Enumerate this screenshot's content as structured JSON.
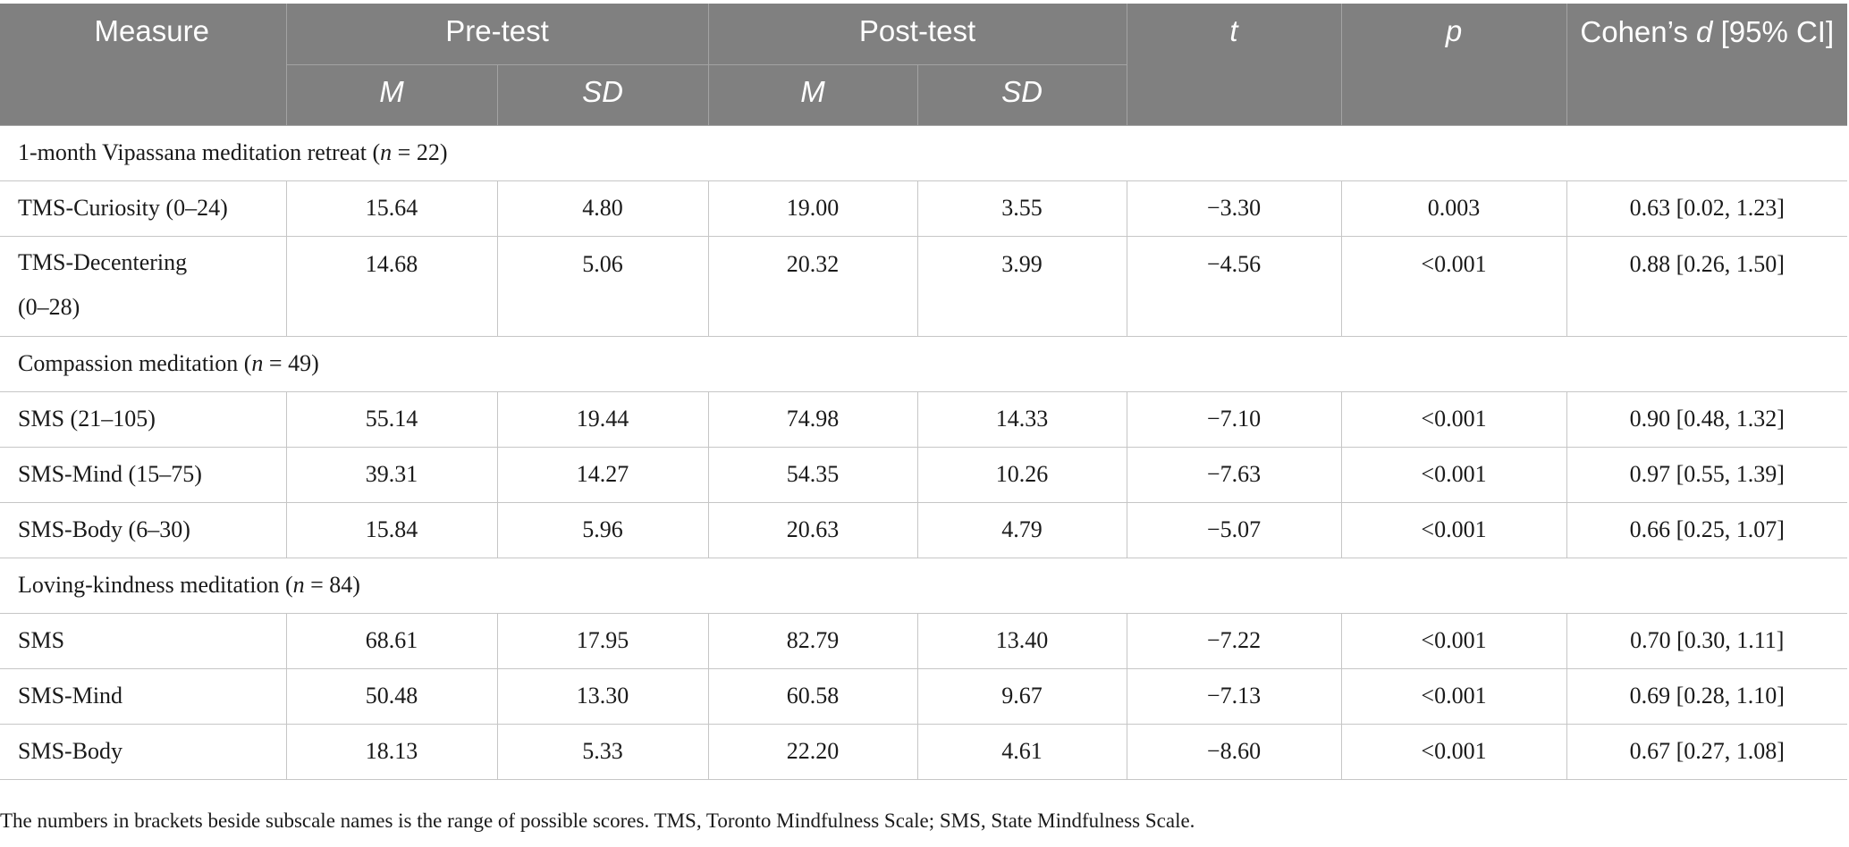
{
  "table": {
    "headers": {
      "measure": "Measure",
      "pre_test": "Pre-test",
      "post_test": "Post-test",
      "t": "t",
      "p": "p",
      "cohen_prefix": "Cohen’s ",
      "cohen_d": "d",
      "cohen_suffix": " [95% CI]",
      "m": "M",
      "sd": "SD"
    },
    "sections": [
      {
        "label_prefix": "1-month Vipassana meditation retreat (",
        "label_n": "n",
        "label_suffix": " = 22)",
        "rows": [
          {
            "measure_line1": "TMS-Curiosity (0–24)",
            "measure_line2": "",
            "pre_m": "15.64",
            "pre_sd": "4.80",
            "post_m": "19.00",
            "post_sd": "3.55",
            "t": "−3.30",
            "p": "0.003",
            "d": "0.63 [0.02, 1.23]"
          },
          {
            "measure_line1": "TMS-Decentering",
            "measure_line2": "(0–28)",
            "pre_m": "14.68",
            "pre_sd": "5.06",
            "post_m": "20.32",
            "post_sd": "3.99",
            "t": "−4.56",
            "p": "<0.001",
            "d": "0.88 [0.26, 1.50]"
          }
        ]
      },
      {
        "label_prefix": "Compassion meditation (",
        "label_n": "n",
        "label_suffix": " = 49)",
        "rows": [
          {
            "measure_line1": "SMS (21–105)",
            "measure_line2": "",
            "pre_m": "55.14",
            "pre_sd": "19.44",
            "post_m": "74.98",
            "post_sd": "14.33",
            "t": "−7.10",
            "p": "<0.001",
            "d": "0.90 [0.48, 1.32]"
          },
          {
            "measure_line1": "SMS-Mind (15–75)",
            "measure_line2": "",
            "pre_m": "39.31",
            "pre_sd": "14.27",
            "post_m": "54.35",
            "post_sd": "10.26",
            "t": "−7.63",
            "p": "<0.001",
            "d": "0.97 [0.55, 1.39]"
          },
          {
            "measure_line1": "SMS-Body (6–30)",
            "measure_line2": "",
            "pre_m": "15.84",
            "pre_sd": "5.96",
            "post_m": "20.63",
            "post_sd": "4.79",
            "t": "−5.07",
            "p": "<0.001",
            "d": "0.66 [0.25, 1.07]"
          }
        ]
      },
      {
        "label_prefix": "Loving-kindness meditation (",
        "label_n": "n",
        "label_suffix": " = 84)",
        "rows": [
          {
            "measure_line1": "SMS",
            "measure_line2": "",
            "pre_m": "68.61",
            "pre_sd": "17.95",
            "post_m": "82.79",
            "post_sd": "13.40",
            "t": "−7.22",
            "p": "<0.001",
            "d": "0.70 [0.30, 1.11]"
          },
          {
            "measure_line1": "SMS-Mind",
            "measure_line2": "",
            "pre_m": "50.48",
            "pre_sd": "13.30",
            "post_m": "60.58",
            "post_sd": "9.67",
            "t": "−7.13",
            "p": "<0.001",
            "d": "0.69 [0.28, 1.10]"
          },
          {
            "measure_line1": "SMS-Body",
            "measure_line2": "",
            "pre_m": "18.13",
            "pre_sd": "5.33",
            "post_m": "22.20",
            "post_sd": "4.61",
            "t": "−8.60",
            "p": "<0.001",
            "d": "0.67 [0.27, 1.08]"
          }
        ]
      }
    ]
  },
  "footnote": "The numbers in brackets beside subscale names is the range of possible scores. TMS, Toronto Mindfulness Scale; SMS, State Mindfulness Scale.",
  "colors": {
    "header_bg": "#808080",
    "header_text": "#ffffff",
    "grid_line": "#c6c6c6",
    "body_text": "#1a1a1a"
  }
}
